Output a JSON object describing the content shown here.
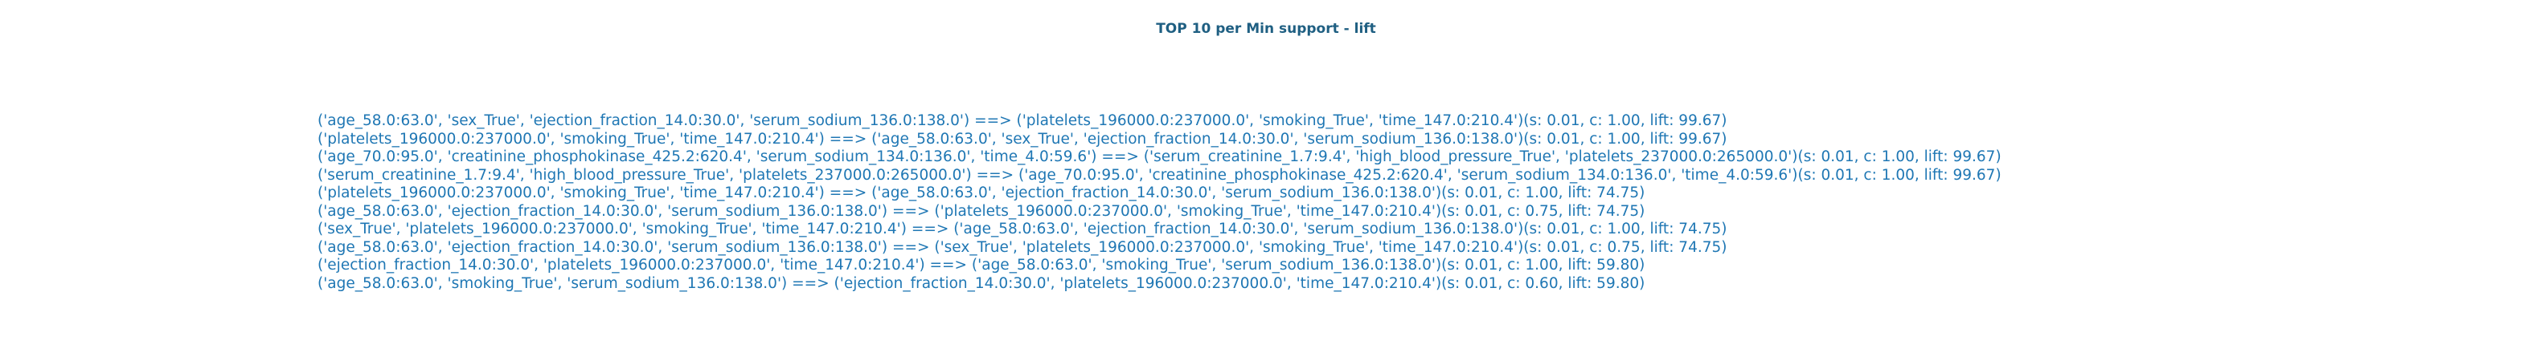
{
  "title": "TOP 10 per Min support - lift",
  "colors": {
    "title": "#1f5f82",
    "rules": "#1f77b4"
  },
  "rules": [
    "('age_58.0:63.0', 'sex_True', 'ejection_fraction_14.0:30.0', 'serum_sodium_136.0:138.0') ==> ('platelets_196000.0:237000.0', 'smoking_True', 'time_147.0:210.4')(s: 0.01, c: 1.00, lift: 99.67)",
    "('platelets_196000.0:237000.0', 'smoking_True', 'time_147.0:210.4') ==> ('age_58.0:63.0', 'sex_True', 'ejection_fraction_14.0:30.0', 'serum_sodium_136.0:138.0')(s: 0.01, c: 1.00, lift: 99.67)",
    "('age_70.0:95.0', 'creatinine_phosphokinase_425.2:620.4', 'serum_sodium_134.0:136.0', 'time_4.0:59.6') ==> ('serum_creatinine_1.7:9.4', 'high_blood_pressure_True', 'platelets_237000.0:265000.0')(s: 0.01, c: 1.00, lift: 99.67)",
    "('serum_creatinine_1.7:9.4', 'high_blood_pressure_True', 'platelets_237000.0:265000.0') ==> ('age_70.0:95.0', 'creatinine_phosphokinase_425.2:620.4', 'serum_sodium_134.0:136.0', 'time_4.0:59.6')(s: 0.01, c: 1.00, lift: 99.67)",
    "('platelets_196000.0:237000.0', 'smoking_True', 'time_147.0:210.4') ==> ('age_58.0:63.0', 'ejection_fraction_14.0:30.0', 'serum_sodium_136.0:138.0')(s: 0.01, c: 1.00, lift: 74.75)",
    "('age_58.0:63.0', 'ejection_fraction_14.0:30.0', 'serum_sodium_136.0:138.0') ==> ('platelets_196000.0:237000.0', 'smoking_True', 'time_147.0:210.4')(s: 0.01, c: 0.75, lift: 74.75)",
    "('sex_True', 'platelets_196000.0:237000.0', 'smoking_True', 'time_147.0:210.4') ==> ('age_58.0:63.0', 'ejection_fraction_14.0:30.0', 'serum_sodium_136.0:138.0')(s: 0.01, c: 1.00, lift: 74.75)",
    "('age_58.0:63.0', 'ejection_fraction_14.0:30.0', 'serum_sodium_136.0:138.0') ==> ('sex_True', 'platelets_196000.0:237000.0', 'smoking_True', 'time_147.0:210.4')(s: 0.01, c: 0.75, lift: 74.75)",
    "('ejection_fraction_14.0:30.0', 'platelets_196000.0:237000.0', 'time_147.0:210.4') ==> ('age_58.0:63.0', 'smoking_True', 'serum_sodium_136.0:138.0')(s: 0.01, c: 1.00, lift: 59.80)",
    "('age_58.0:63.0', 'smoking_True', 'serum_sodium_136.0:138.0') ==> ('ejection_fraction_14.0:30.0', 'platelets_196000.0:237000.0', 'time_147.0:210.4')(s: 0.01, c: 0.60, lift: 59.80)"
  ]
}
